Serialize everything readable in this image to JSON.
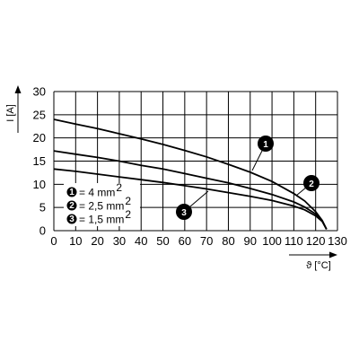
{
  "chart_data": {
    "type": "line",
    "xlabel": "ϑ [°C]",
    "ylabel": "I [A]",
    "xlim": [
      0,
      130
    ],
    "ylim": [
      0,
      30
    ],
    "x_ticks": [
      0,
      10,
      20,
      30,
      40,
      50,
      60,
      70,
      80,
      90,
      100,
      110,
      120,
      130
    ],
    "y_ticks": [
      0,
      5,
      10,
      15,
      20,
      25,
      30
    ],
    "grid": true,
    "legend_position": "bottom-left",
    "series": [
      {
        "marker": "1",
        "legend_label": "= 4 mm",
        "legend_sup": "2",
        "x": [
          0,
          10,
          20,
          30,
          40,
          50,
          60,
          70,
          80,
          90,
          100,
          110,
          115,
          120,
          123,
          125
        ],
        "y": [
          24.0,
          23.0,
          22.0,
          20.9,
          19.8,
          18.6,
          17.3,
          15.9,
          14.3,
          12.6,
          10.6,
          8.0,
          6.4,
          4.1,
          2.2,
          0.3
        ]
      },
      {
        "marker": "2",
        "legend_label": "= 2,5 mm",
        "legend_sup": "2",
        "x": [
          0,
          10,
          20,
          30,
          40,
          50,
          60,
          70,
          80,
          90,
          100,
          110,
          115,
          120,
          123,
          125
        ],
        "y": [
          17.2,
          16.5,
          15.8,
          15.0,
          14.1,
          13.3,
          12.3,
          11.3,
          10.3,
          9.1,
          7.8,
          6.2,
          5.1,
          3.6,
          2.1,
          0.3
        ]
      },
      {
        "marker": "3",
        "legend_label": "= 1,5 mm",
        "legend_sup": "2",
        "x": [
          0,
          10,
          20,
          30,
          40,
          50,
          60,
          70,
          80,
          90,
          100,
          110,
          115,
          120,
          123,
          125
        ],
        "y": [
          13.3,
          12.8,
          12.2,
          11.6,
          11.0,
          10.4,
          9.7,
          9.0,
          8.2,
          7.4,
          6.5,
          5.3,
          4.5,
          3.2,
          2.0,
          0.3
        ]
      }
    ]
  },
  "colors": {
    "line": "#000000",
    "grid": "#000000",
    "marker_fill": "#000000",
    "marker_text": "#ffffff",
    "background": "#ffffff"
  }
}
